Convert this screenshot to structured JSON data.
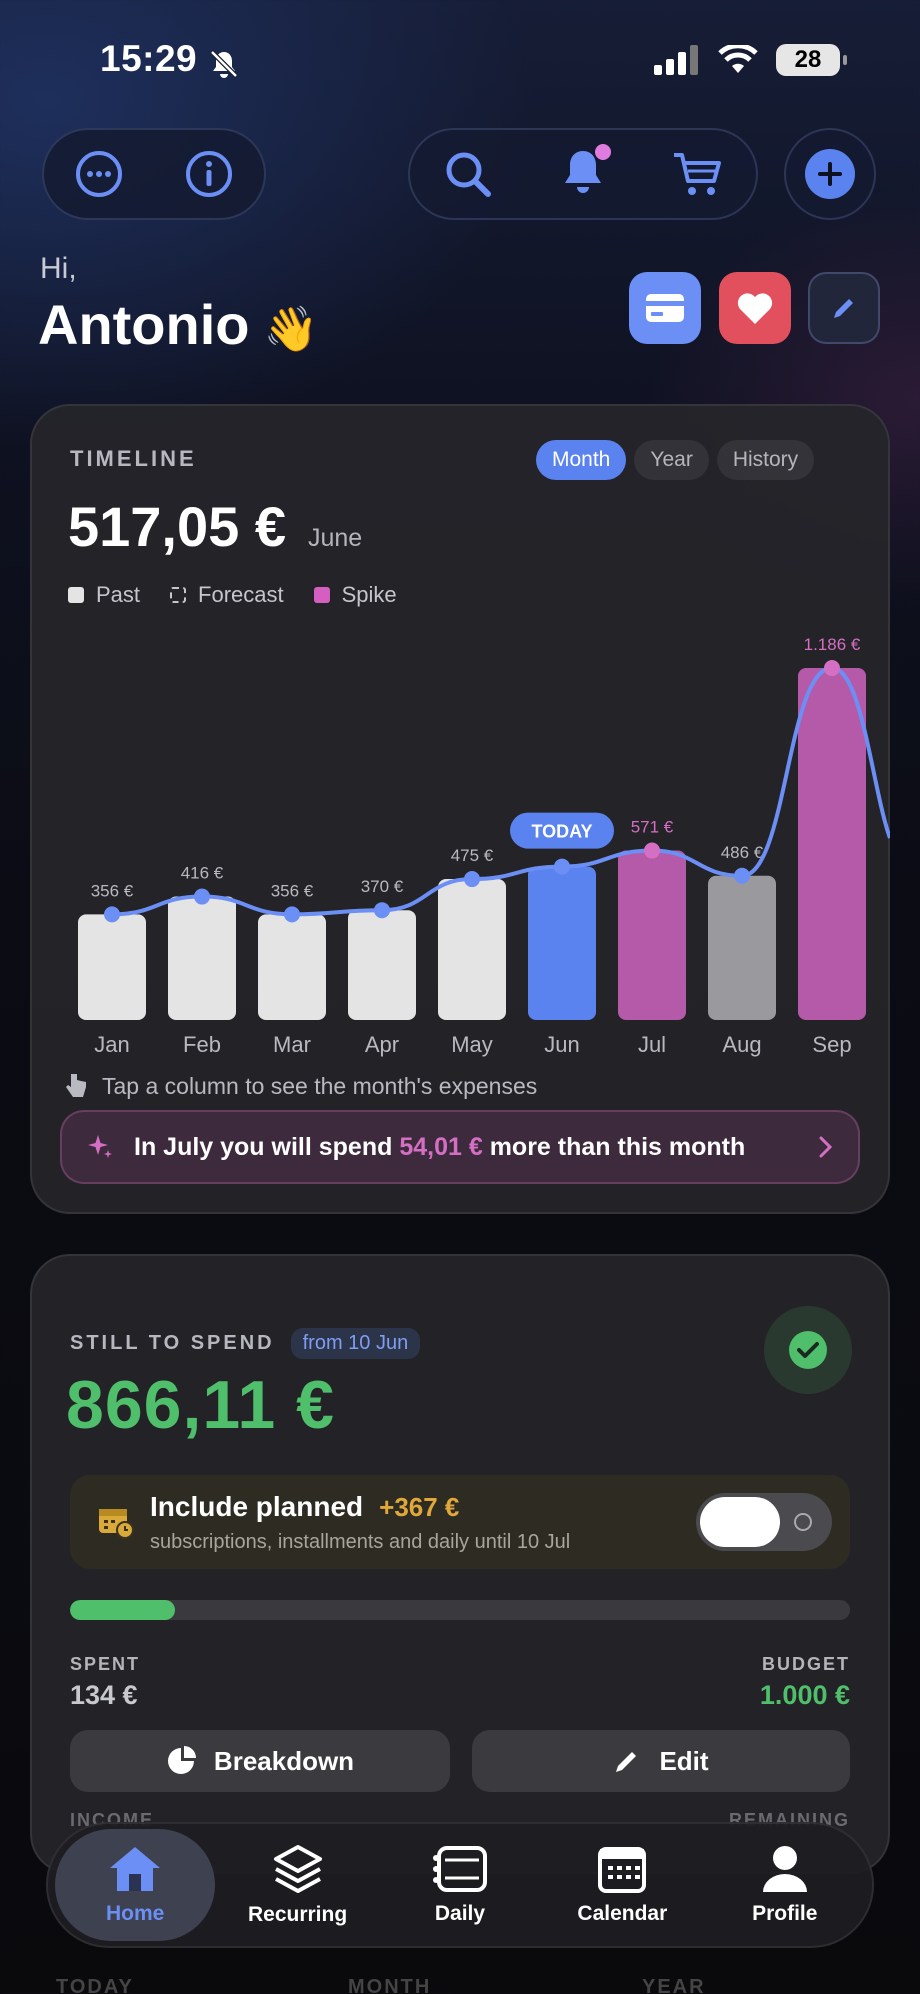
{
  "status": {
    "time": "15:29",
    "battery": "28"
  },
  "greeting": {
    "hi": "Hi,",
    "name": "Antonio",
    "emoji": "👋"
  },
  "icons": {
    "more": "more-icon",
    "info": "info-icon",
    "search": "search-icon",
    "bell": "bell-icon",
    "cart": "cart-icon",
    "add": "plus-icon",
    "card": "card-icon",
    "heart": "heart-icon",
    "pencil": "pencil-icon"
  },
  "colors": {
    "accent": "#5b83f0",
    "spike": "#b45aa8",
    "past": "#e4e4e4",
    "green": "#4fbf6b",
    "bell_dot": "#e07be0"
  },
  "timeline": {
    "label": "TIMELINE",
    "tabs": [
      "Month",
      "Year",
      "History"
    ],
    "active_tab": "Month",
    "amount": "517,05 €",
    "month": "June",
    "legend": [
      "Past",
      "Forecast",
      "Spike"
    ],
    "today_label": "TODAY",
    "hint": "Tap a column to see the month's expenses",
    "insight_pre": "In July you will spend",
    "insight_amount": "54,01 €",
    "insight_post": "more than this month"
  },
  "chart_data": {
    "type": "bar",
    "categories": [
      "Jan",
      "Feb",
      "Mar",
      "Apr",
      "May",
      "Jun",
      "Jul",
      "Aug",
      "Sep"
    ],
    "values": [
      356,
      416,
      356,
      370,
      475,
      517.05,
      571,
      486,
      1186
    ],
    "labels": [
      "356 €",
      "416 €",
      "356 €",
      "370 €",
      "475 €",
      "",
      "571 €",
      "486 €",
      "1.186 €"
    ],
    "kinds": [
      "past",
      "past",
      "past",
      "past",
      "past",
      "today",
      "spike",
      "forecast",
      "spike"
    ],
    "line_overlay": true
  },
  "budget": {
    "label": "STILL TO SPEND",
    "from": "from 10 Jun",
    "amount": "866,11 €",
    "planned_title": "Include planned",
    "planned_amount": "+367 €",
    "planned_sub": "subscriptions, installments and daily until 10 Jul",
    "progress": 0.134,
    "spent_label": "SPENT",
    "spent_value": "134 €",
    "budget_label": "BUDGET",
    "budget_value": "1.000 €",
    "breakdown": "Breakdown",
    "edit": "Edit",
    "income_label": "INCOME",
    "remaining_label": "REMAINING"
  },
  "tabs": [
    {
      "label": "Home",
      "icon": "home-icon"
    },
    {
      "label": "Recurring",
      "icon": "layers-icon"
    },
    {
      "label": "Daily",
      "icon": "daily-icon"
    },
    {
      "label": "Calendar",
      "icon": "calendar-icon"
    },
    {
      "label": "Profile",
      "icon": "profile-icon"
    }
  ],
  "bottom_faded": [
    "TODAY",
    "MONTH",
    "YEAR"
  ]
}
